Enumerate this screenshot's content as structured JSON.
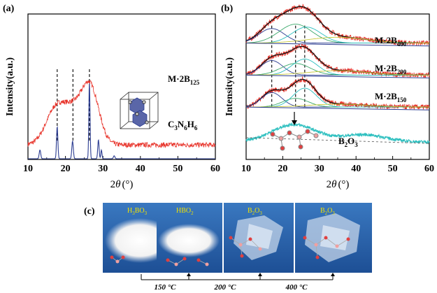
{
  "panel_a": {
    "label": "(a)",
    "ylabel": "Intensity(a.u.)",
    "xlabel_main": "2",
    "xlabel_theta": "θ",
    "xlabel_unit": "(°)",
    "annotations": [
      {
        "main": "M·2B",
        "sub": "125"
      },
      {
        "main": "C",
        "sub": "3",
        "main2": "N",
        "sub2": "6",
        "main3": "H",
        "sub3": "6"
      }
    ]
  },
  "panel_b": {
    "label": "(b)",
    "ylabel": "Intensity(a.u.)",
    "xlabel_main": "2",
    "xlabel_theta": "θ",
    "xlabel_unit": "(°)",
    "annotations": [
      {
        "main": "M·2B",
        "sub": "400"
      },
      {
        "main": "M·2B",
        "sub": "200"
      },
      {
        "main": "M·2B",
        "sub": "150"
      },
      {
        "main": "B",
        "sub": "2",
        "main2": "O",
        "sub2": "3"
      }
    ]
  },
  "panel_c": {
    "label": "(c)",
    "photos": [
      {
        "main": "H",
        "sub": "3",
        "main2": "BO",
        "sub2": "3"
      },
      {
        "main": "HBO",
        "sub": "2"
      },
      {
        "main": "B",
        "sub": "2",
        "main2": "O",
        "sub2": "3"
      },
      {
        "main": "B",
        "sub": "2",
        "main2": "O",
        "sub2": "3"
      }
    ],
    "temperatures": [
      "150 °C",
      "200 °C",
      "400 °C"
    ]
  },
  "chart_data": [
    {
      "type": "line",
      "ylim": [
        0,
        1
      ],
      "xlim": [
        10,
        60
      ],
      "x_ticks": [
        10,
        20,
        30,
        40,
        50,
        60
      ],
      "dashed_guides_x": [
        17.8,
        22.0,
        26.4
      ],
      "series": [
        {
          "peaks": [
            [
              17.8,
              0.27,
              2.8
            ],
            [
              22.0,
              0.14,
              2.0
            ],
            [
              26.4,
              0.42,
              2.4
            ]
          ],
          "baseline": 0.1,
          "color": "#e8342b"
        },
        {
          "peaks": [
            [
              13.2,
              0.06,
              0.2
            ],
            [
              17.8,
              0.22,
              0.18
            ],
            [
              21.9,
              0.12,
              0.2
            ],
            [
              26.4,
              0.52,
              0.16
            ],
            [
              28.8,
              0.13,
              0.18
            ],
            [
              29.6,
              0.06,
              0.15
            ],
            [
              33.0,
              0.02,
              0.2
            ]
          ],
          "baseline": 0.005,
          "color": "#2b3c91"
        }
      ]
    },
    {
      "type": "line",
      "ylim": [
        0,
        1
      ],
      "xlim": [
        10,
        60
      ],
      "x_ticks": [
        10,
        20,
        30,
        40,
        50,
        60
      ],
      "dashed_guides_x": [
        17.0,
        23.5,
        26.0
      ],
      "series": [
        {
          "peaks": [
            [
              17.0,
              0.1,
              3.5
            ],
            [
              23.5,
              0.13,
              4.5
            ],
            [
              26.5,
              0.11,
              4.0
            ],
            [
              35,
              0.04,
              8
            ]
          ],
          "offset": 0.8,
          "color": "#e8342b"
        },
        {
          "peaks": [
            [
              17.0,
              0.1,
              3.0
            ],
            [
              23.5,
              0.08,
              4.0
            ],
            [
              26.0,
              0.11,
              3.5
            ],
            [
              35,
              0.03,
              8
            ]
          ],
          "offset": 0.58,
          "color": "#e8342b"
        },
        {
          "peaks": [
            [
              17.0,
              0.1,
              2.8
            ],
            [
              23.5,
              0.06,
              3.5
            ],
            [
              26.0,
              0.13,
              3.2
            ],
            [
              35,
              0.02,
              8
            ]
          ],
          "offset": 0.36,
          "color": "#e8342b"
        },
        {
          "peaks": [
            [
              23.0,
              0.12,
              6.0
            ],
            [
              42.0,
              0.05,
              6.0
            ]
          ],
          "offset": 0.12,
          "color": "#2cbfbf"
        }
      ]
    }
  ]
}
